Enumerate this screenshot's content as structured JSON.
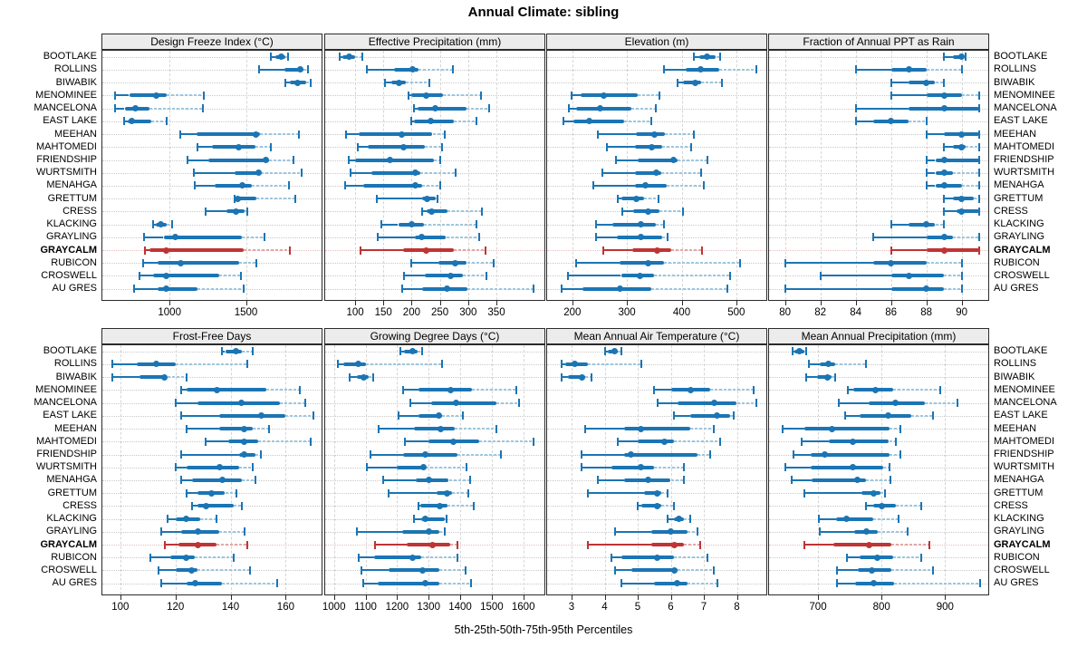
{
  "header": {
    "title": "Annual Climate: sibling"
  },
  "footer": {
    "caption": "5th-25th-50th-75th-95th Percentiles"
  },
  "colors": {
    "series_blue": "#1b75b4",
    "series_blue_light": "#9cc6e0",
    "highlight_red": "#bf3434",
    "highlight_red_light": "#e2a6a6",
    "strip_bg": "#ececec",
    "grid_dash": "#d6d6d6",
    "ref_dot": "#c9c9c9",
    "ref_dot_highlight": "#e7bdbd"
  },
  "chart_data": {
    "type": "dotplot-percentiles",
    "percentiles": [
      "5th",
      "25th",
      "50th",
      "75th",
      "95th"
    ],
    "highlighted_site": "GRAYCALM",
    "sites": [
      "BOOTLAKE",
      "ROLLINS",
      "BIWABIK",
      "MENOMINEE",
      "MANCELONA",
      "EAST LAKE",
      "MEEHAN",
      "MAHTOMEDI",
      "FRIENDSHIP",
      "WURTSMITH",
      "MENAHGA",
      "GRETTUM",
      "CRESS",
      "KLACKING",
      "GRAYLING",
      "GRAYCALM",
      "RUBICON",
      "CROSWELL",
      "AU GRES"
    ],
    "panels": [
      {
        "title": "Design Freeze Index (°C)",
        "grid_row": 0,
        "grid_col": 0,
        "xmin": 560,
        "xmax": 1995,
        "ticks": [
          1000,
          1500
        ],
        "values": [
          [
            1665,
            1695,
            1730,
            1760,
            1775
          ],
          [
            1585,
            1750,
            1855,
            1875,
            1905
          ],
          [
            1760,
            1790,
            1835,
            1895,
            1925
          ],
          [
            645,
            735,
            910,
            980,
            1225
          ],
          [
            645,
            705,
            775,
            870,
            1215
          ],
          [
            700,
            725,
            750,
            880,
            980
          ],
          [
            1070,
            1175,
            1565,
            1590,
            1845
          ],
          [
            1185,
            1280,
            1455,
            1560,
            1665
          ],
          [
            1115,
            1255,
            1630,
            1650,
            1810
          ],
          [
            1160,
            1425,
            1580,
            1600,
            1865
          ],
          [
            1165,
            1295,
            1475,
            1540,
            1780
          ],
          [
            1425,
            1435,
            1445,
            1570,
            1820
          ],
          [
            1235,
            1375,
            1435,
            1490,
            1510
          ],
          [
            890,
            910,
            940,
            980,
            1015
          ],
          [
            835,
            960,
            1040,
            1475,
            1620
          ],
          [
            840,
            870,
            980,
            1485,
            1790
          ],
          [
            825,
            920,
            1075,
            1455,
            1570
          ],
          [
            800,
            890,
            980,
            1325,
            1465
          ],
          [
            765,
            920,
            980,
            1185,
            1485
          ]
        ]
      },
      {
        "title": "Effective Precipitation (mm)",
        "grid_row": 0,
        "grid_col": 1,
        "xmin": 47,
        "xmax": 435,
        "ticks": [
          100,
          150,
          200,
          250,
          300,
          350
        ],
        "values": [
          [
            73,
            78,
            90,
            100,
            112
          ],
          [
            121,
            169,
            201,
            212,
            273
          ],
          [
            153,
            164,
            177,
            189,
            231
          ],
          [
            194,
            200,
            225,
            256,
            322
          ],
          [
            204,
            210,
            242,
            297,
            337
          ],
          [
            199,
            204,
            234,
            274,
            315
          ],
          [
            84,
            106,
            182,
            237,
            258
          ],
          [
            104,
            122,
            185,
            223,
            254
          ],
          [
            89,
            100,
            161,
            239,
            250
          ],
          [
            92,
            129,
            207,
            215,
            278
          ],
          [
            82,
            114,
            207,
            218,
            250
          ],
          [
            138,
            218,
            227,
            242,
            246
          ],
          [
            218,
            226,
            235,
            263,
            325
          ],
          [
            146,
            176,
            200,
            221,
            315
          ],
          [
            140,
            205,
            218,
            261,
            319
          ],
          [
            110,
            185,
            226,
            275,
            330
          ],
          [
            200,
            247,
            277,
            298,
            345
          ],
          [
            187,
            223,
            269,
            290,
            332
          ],
          [
            184,
            218,
            262,
            298,
            415
          ]
        ]
      },
      {
        "title": "Elevation (m)",
        "grid_row": 0,
        "grid_col": 2,
        "xmin": 154,
        "xmax": 555,
        "ticks": [
          200,
          300,
          400,
          500
        ],
        "values": [
          [
            423,
            433,
            447,
            463,
            470
          ],
          [
            368,
            408,
            434,
            469,
            537
          ],
          [
            393,
            402,
            425,
            436,
            474
          ],
          [
            198,
            215,
            257,
            320,
            360
          ],
          [
            193,
            207,
            251,
            308,
            353
          ],
          [
            184,
            202,
            231,
            295,
            345
          ],
          [
            247,
            317,
            350,
            370,
            423
          ],
          [
            264,
            315,
            346,
            364,
            418
          ],
          [
            280,
            320,
            385,
            392,
            447
          ],
          [
            255,
            315,
            354,
            363,
            436
          ],
          [
            239,
            315,
            334,
            372,
            440
          ],
          [
            283,
            290,
            317,
            331,
            357
          ],
          [
            291,
            312,
            338,
            359,
            403
          ],
          [
            244,
            273,
            326,
            353,
            367
          ],
          [
            244,
            281,
            326,
            364,
            375
          ],
          [
            257,
            309,
            356,
            381,
            437
          ],
          [
            207,
            287,
            338,
            367,
            507
          ],
          [
            192,
            289,
            323,
            350,
            488
          ],
          [
            181,
            218,
            287,
            345,
            484
          ]
        ]
      },
      {
        "title": "Fraction of Annual PPT as Rain",
        "grid_row": 0,
        "grid_col": 3,
        "xmin": 79.1,
        "xmax": 91.5,
        "ticks": [
          80,
          82,
          84,
          86,
          88,
          90
        ],
        "values": [
          [
            89,
            89.5,
            90,
            90,
            90.2
          ],
          [
            84,
            86,
            87,
            88,
            90
          ],
          [
            86,
            87,
            88,
            88.5,
            89
          ],
          [
            86,
            88,
            89,
            90,
            91
          ],
          [
            84,
            87,
            89,
            91,
            91
          ],
          [
            84,
            85,
            86,
            87,
            88
          ],
          [
            88,
            89,
            90,
            91,
            91
          ],
          [
            89,
            89.5,
            90,
            90.2,
            91
          ],
          [
            88,
            88.5,
            89,
            91,
            91
          ],
          [
            88,
            88.5,
            89,
            89.5,
            91
          ],
          [
            88,
            88.5,
            89,
            90,
            91
          ],
          [
            89,
            89.5,
            90,
            90.7,
            91
          ],
          [
            89,
            89.7,
            90,
            91,
            91
          ],
          [
            86,
            87,
            88,
            88.5,
            89
          ],
          [
            85,
            88,
            89,
            89.5,
            91
          ],
          [
            86,
            88,
            89,
            91,
            91
          ],
          [
            80,
            85,
            86,
            88,
            90
          ],
          [
            82,
            86,
            87,
            89,
            90
          ],
          [
            80,
            86,
            88,
            89,
            90
          ]
        ]
      },
      {
        "title": "Frost-Free Days",
        "grid_row": 1,
        "grid_col": 0,
        "xmin": 93.5,
        "xmax": 173,
        "ticks": [
          100,
          120,
          140,
          160
        ],
        "values": [
          [
            137,
            138,
            142,
            144,
            148
          ],
          [
            97,
            106,
            113,
            120,
            146
          ],
          [
            97,
            107,
            116,
            117,
            124
          ],
          [
            122,
            124,
            135,
            153,
            165
          ],
          [
            120,
            128,
            144,
            158,
            167
          ],
          [
            122,
            136,
            151,
            160,
            170
          ],
          [
            124,
            136,
            145,
            148,
            154
          ],
          [
            131,
            139,
            145,
            150,
            169
          ],
          [
            122,
            143,
            145,
            149,
            151
          ],
          [
            120,
            124,
            136,
            143,
            148
          ],
          [
            122,
            126,
            137,
            144,
            149
          ],
          [
            124,
            128,
            133,
            138,
            142
          ],
          [
            126,
            128,
            131,
            141,
            144
          ],
          [
            117,
            120,
            124,
            129,
            135
          ],
          [
            115,
            122,
            128,
            136,
            145
          ],
          [
            116,
            121,
            128,
            135,
            146
          ],
          [
            111,
            118,
            124,
            127,
            141
          ],
          [
            114,
            120,
            126,
            128,
            147
          ],
          [
            115,
            124,
            127,
            137,
            157
          ]
        ]
      },
      {
        "title": "Growing Degree Days (°C)",
        "grid_row": 1,
        "grid_col": 1,
        "xmin": 972,
        "xmax": 1667,
        "ticks": [
          1000,
          1100,
          1200,
          1300,
          1400,
          1500,
          1600
        ],
        "values": [
          [
            1211,
            1221,
            1250,
            1264,
            1278
          ],
          [
            1011,
            1030,
            1076,
            1102,
            1343
          ],
          [
            1048,
            1071,
            1095,
            1111,
            1124
          ],
          [
            1219,
            1269,
            1371,
            1438,
            1578
          ],
          [
            1243,
            1307,
            1386,
            1516,
            1586
          ],
          [
            1205,
            1269,
            1333,
            1343,
            1407
          ],
          [
            1140,
            1252,
            1338,
            1383,
            1514
          ],
          [
            1226,
            1300,
            1378,
            1459,
            1633
          ],
          [
            1116,
            1219,
            1288,
            1392,
            1530
          ],
          [
            1105,
            1200,
            1283,
            1292,
            1419
          ],
          [
            1157,
            1259,
            1302,
            1364,
            1430
          ],
          [
            1173,
            1326,
            1357,
            1373,
            1426
          ],
          [
            1267,
            1273,
            1335,
            1359,
            1443
          ],
          [
            1252,
            1276,
            1288,
            1350,
            1357
          ],
          [
            1071,
            1216,
            1300,
            1335,
            1352
          ],
          [
            1130,
            1229,
            1311,
            1367,
            1392
          ],
          [
            1078,
            1126,
            1248,
            1276,
            1390
          ],
          [
            1086,
            1173,
            1281,
            1333,
            1416
          ],
          [
            1092,
            1138,
            1288,
            1335,
            1433
          ]
        ]
      },
      {
        "title": "Mean Annual Air Temperature (°C)",
        "grid_row": 1,
        "grid_col": 2,
        "xmin": 2.26,
        "xmax": 8.89,
        "ticks": [
          3,
          4,
          5,
          6,
          7,
          8
        ],
        "values": [
          [
            4.0,
            4.1,
            4.3,
            4.4,
            4.5
          ],
          [
            2.7,
            2.8,
            3.1,
            3.5,
            5.1
          ],
          [
            2.7,
            2.9,
            3.3,
            3.4,
            3.6
          ],
          [
            5.5,
            6.0,
            6.6,
            7.2,
            8.5
          ],
          [
            5.6,
            6.2,
            7.3,
            8.0,
            8.6
          ],
          [
            6.1,
            6.6,
            7.4,
            7.8,
            7.9
          ],
          [
            3.4,
            4.6,
            5.1,
            6.6,
            7.3
          ],
          [
            4.4,
            5.0,
            5.8,
            6.1,
            7.5
          ],
          [
            3.3,
            4.6,
            4.8,
            6.8,
            7.2
          ],
          [
            3.3,
            4.2,
            5.1,
            5.5,
            6.4
          ],
          [
            3.8,
            4.6,
            5.3,
            6.0,
            6.4
          ],
          [
            3.5,
            5.2,
            5.6,
            5.7,
            5.9
          ],
          [
            5.0,
            5.1,
            5.6,
            5.7,
            6.1
          ],
          [
            5.9,
            6.1,
            6.25,
            6.4,
            6.6
          ],
          [
            4.3,
            5.4,
            6.0,
            6.5,
            6.8
          ],
          [
            3.5,
            5.4,
            6.1,
            6.4,
            6.9
          ],
          [
            4.2,
            4.5,
            5.6,
            6.1,
            7.1
          ],
          [
            4.3,
            4.8,
            6.1,
            6.2,
            7.3
          ],
          [
            4.5,
            5.5,
            6.2,
            6.5,
            7.4
          ]
        ]
      },
      {
        "title": "Mean Annual Precipitation (mm)",
        "grid_row": 1,
        "grid_col": 3,
        "xmin": 623,
        "xmax": 968,
        "ticks": [
          700,
          800,
          900
        ],
        "values": [
          [
            660,
            663,
            671,
            678,
            682
          ],
          [
            685,
            703,
            716,
            727,
            775
          ],
          [
            681,
            698,
            715,
            722,
            727
          ],
          [
            747,
            756,
            791,
            818,
            893
          ],
          [
            732,
            780,
            822,
            868,
            920
          ],
          [
            743,
            766,
            810,
            847,
            881
          ],
          [
            644,
            679,
            722,
            813,
            830
          ],
          [
            674,
            717,
            755,
            812,
            823
          ],
          [
            662,
            689,
            710,
            813,
            829
          ],
          [
            648,
            689,
            755,
            803,
            812
          ],
          [
            659,
            690,
            762,
            775,
            814
          ],
          [
            679,
            768,
            787,
            798,
            806
          ],
          [
            776,
            787,
            800,
            823,
            862
          ],
          [
            701,
            729,
            745,
            787,
            827
          ],
          [
            703,
            757,
            776,
            794,
            841
          ],
          [
            679,
            724,
            781,
            815,
            875
          ],
          [
            746,
            765,
            793,
            818,
            862
          ],
          [
            730,
            763,
            785,
            815,
            881
          ],
          [
            730,
            758,
            787,
            820,
            955
          ]
        ]
      }
    ]
  }
}
